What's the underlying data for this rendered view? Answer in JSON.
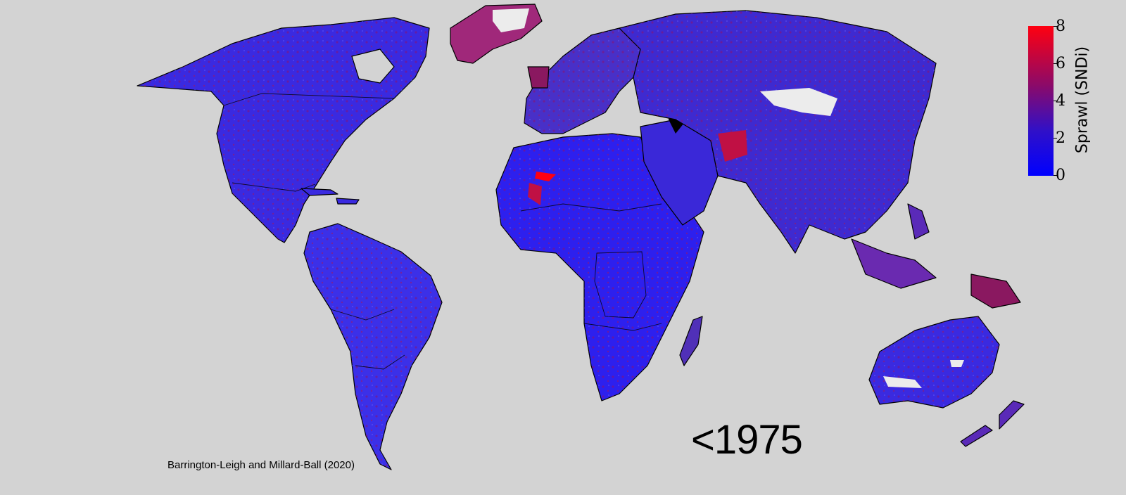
{
  "legend": {
    "title": "Sprawl (SNDi)",
    "ticks": [
      "8",
      "6",
      "4",
      "2",
      "0"
    ],
    "colors": {
      "high": "#ff0010",
      "mid": "#8a0a6a",
      "low": "#0000ff"
    }
  },
  "era_label": "<1975",
  "attribution": "Barrington-Leigh and Millard-Ball (2020)",
  "map": {
    "background": "#d3d3d3",
    "dominant_color": "#3a22d8",
    "no_data_color": "#f0f0f0",
    "water_body_color": "#000000"
  }
}
